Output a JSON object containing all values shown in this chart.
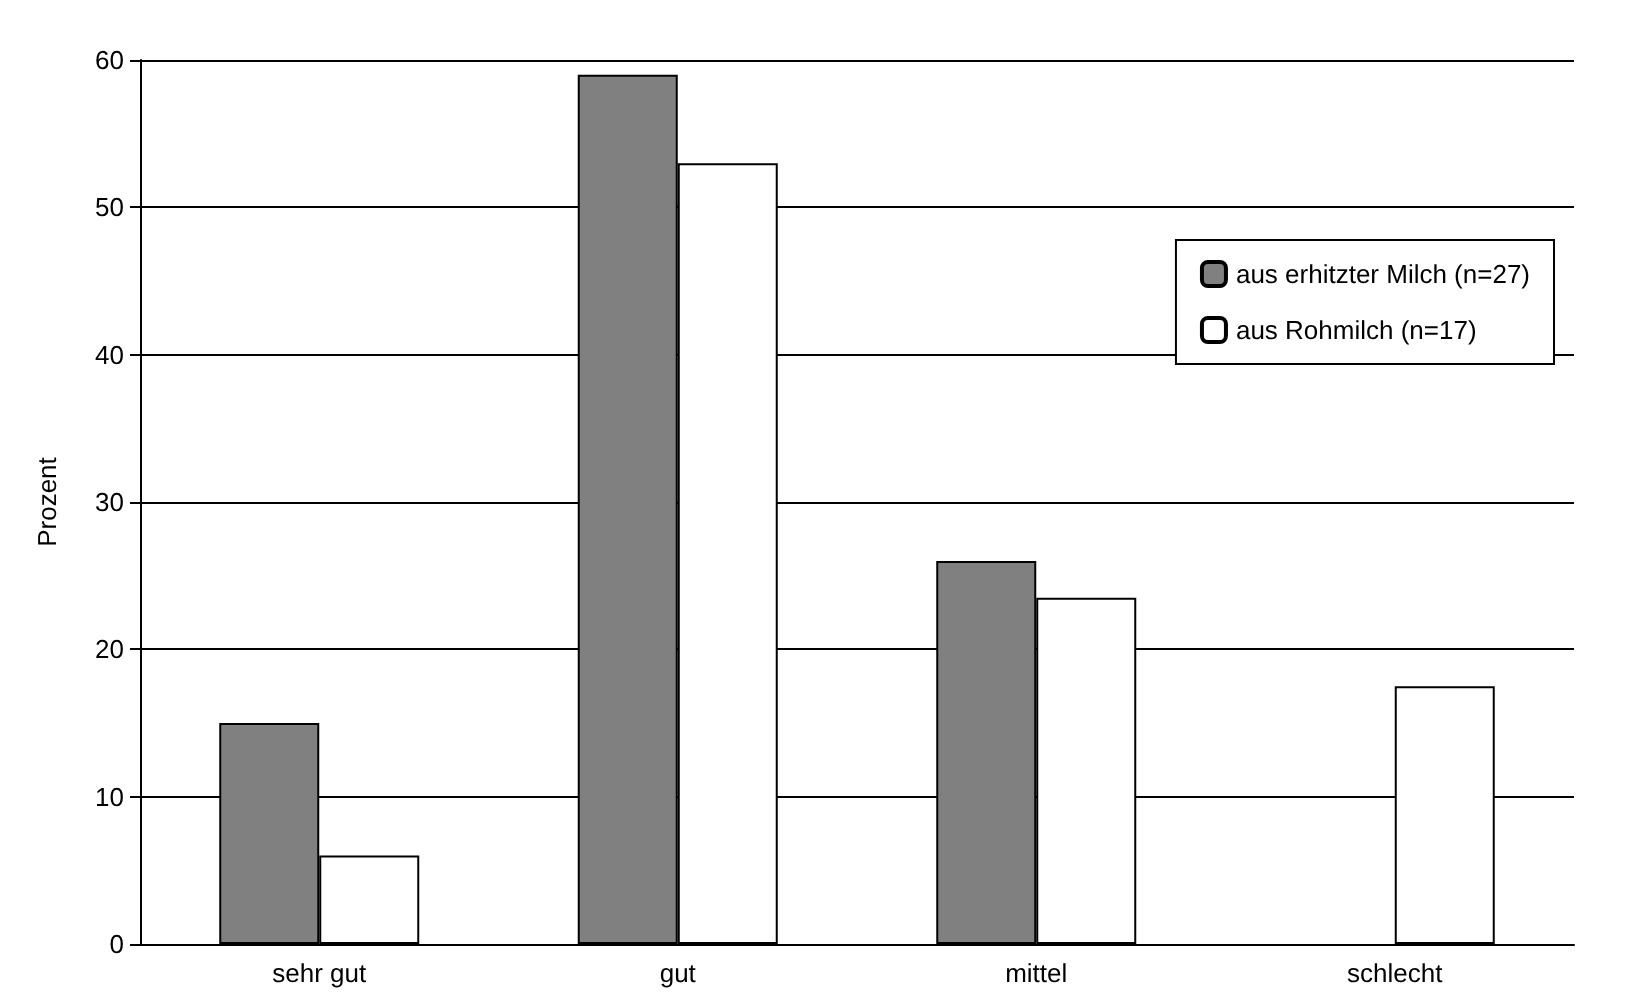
{
  "chart_data": {
    "type": "bar",
    "ylabel": "Prozent",
    "categories": [
      "sehr gut",
      "gut",
      "mittel",
      "schlecht"
    ],
    "series": [
      {
        "name": "aus erhitzter Milch (n=27)",
        "color": "#808080",
        "values": [
          15,
          59,
          26,
          0
        ]
      },
      {
        "name": "aus Rohmilch (n=17)",
        "color": "#ffffff",
        "values": [
          6,
          53,
          23.5,
          17.5
        ]
      }
    ],
    "ylim": [
      0,
      60
    ],
    "yticks": [
      0,
      10,
      20,
      30,
      40,
      50,
      60
    ],
    "grid": "y",
    "legend": "top right"
  }
}
